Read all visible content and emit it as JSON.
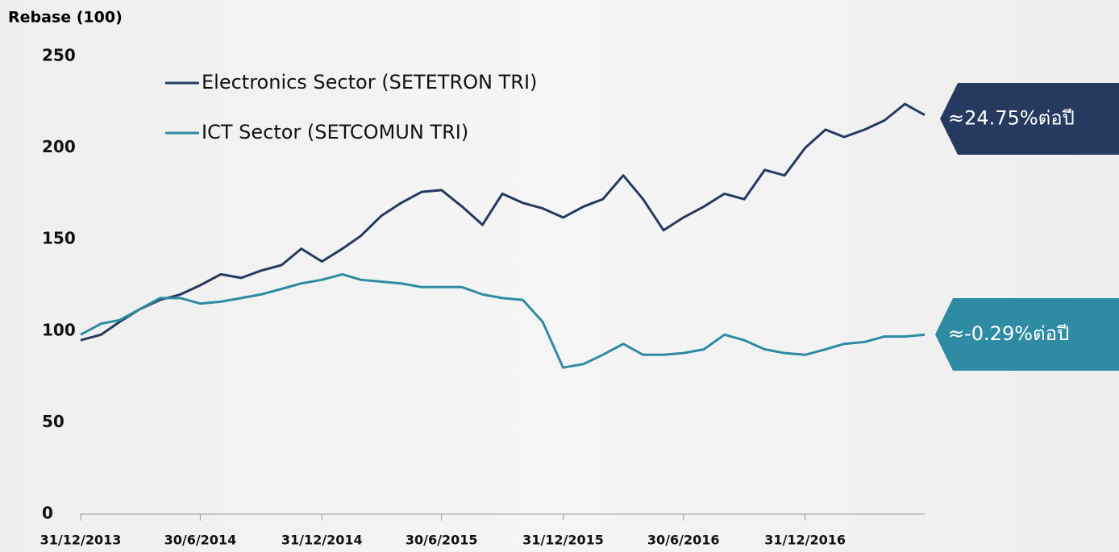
{
  "chart_data": {
    "type": "line",
    "y_label": "Rebase (100)",
    "x": [
      "31/12/2013",
      "31/1/2014",
      "28/2/2014",
      "31/3/2014",
      "30/4/2014",
      "31/5/2014",
      "30/6/2014",
      "31/7/2014",
      "31/8/2014",
      "30/9/2014",
      "31/10/2014",
      "30/11/2014",
      "31/12/2014",
      "31/1/2015",
      "28/2/2015",
      "31/3/2015",
      "30/4/2015",
      "31/5/2015",
      "30/6/2015",
      "31/7/2015",
      "31/8/2015",
      "30/9/2015",
      "31/10/2015",
      "30/11/2015",
      "31/12/2015",
      "31/1/2016",
      "29/2/2016",
      "31/3/2016",
      "30/4/2016",
      "31/5/2016",
      "30/6/2016",
      "31/7/2016",
      "31/8/2016",
      "30/9/2016",
      "31/10/2016",
      "30/11/2016",
      "31/12/2016",
      "31/1/2017",
      "28/2/2017",
      "31/3/2017",
      "30/4/2017",
      "31/5/2017",
      "30/6/2017"
    ],
    "series": [
      {
        "name": "Electronics Sector (SETETRON TRI)",
        "color": "#253a5e",
        "values": [
          95,
          98,
          105,
          112,
          117,
          120,
          125,
          131,
          129,
          133,
          136,
          145,
          138,
          145,
          152,
          163,
          170,
          176,
          177,
          168,
          158,
          175,
          170,
          167,
          162,
          168,
          172,
          185,
          172,
          155,
          162,
          168,
          175,
          172,
          188,
          185,
          200,
          210,
          206,
          210,
          215,
          224,
          218
        ]
      },
      {
        "name": "ICT Sector (SETCOMUN TRI)",
        "color": "#2e8ba3",
        "values": [
          98,
          104,
          106,
          112,
          118,
          118,
          115,
          116,
          118,
          120,
          123,
          126,
          128,
          131,
          128,
          127,
          126,
          124,
          124,
          124,
          120,
          118,
          117,
          105,
          80,
          82,
          87,
          93,
          87,
          87,
          88,
          90,
          98,
          95,
          90,
          88,
          87,
          90,
          93,
          94,
          97,
          97,
          98
        ]
      }
    ],
    "xlim": [
      "31/12/2013",
      "30/6/2017"
    ],
    "xticks": [
      "31/12/2013",
      "30/6/2014",
      "31/12/2014",
      "30/6/2015",
      "31/12/2015",
      "30/6/2016",
      "31/12/2016"
    ],
    "ylim": [
      0,
      250
    ],
    "yticks": [
      0,
      50,
      100,
      150,
      200,
      250
    ],
    "grid": false,
    "legend": "top-left",
    "annotations": [
      "≈24.75%ต่อปี",
      "≈-0.29%ต่อปี"
    ]
  }
}
